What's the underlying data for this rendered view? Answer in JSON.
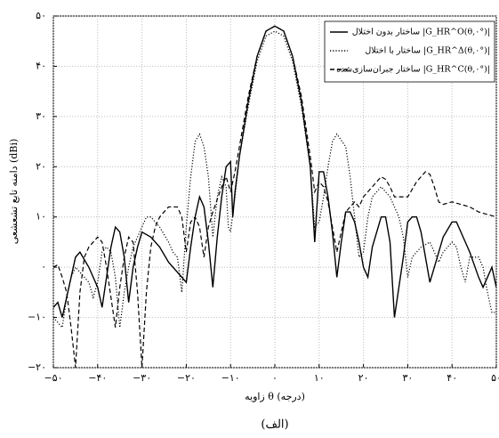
{
  "chart_data": {
    "type": "line",
    "y_label": "دامنه تابع تشعشعی (dBi)",
    "x_label": "زاویه θ (درجه)",
    "caption": "(الف)",
    "xlim": [
      -50,
      50
    ],
    "xticks": [
      {
        "value": -50,
        "label": "−۵۰"
      },
      {
        "value": -40,
        "label": "−۴۰"
      },
      {
        "value": -30,
        "label": "−۳۰"
      },
      {
        "value": -20,
        "label": "−۲۰"
      },
      {
        "value": -10,
        "label": "−۱۰"
      },
      {
        "value": 0,
        "label": "۰"
      },
      {
        "value": 10,
        "label": "۱۰"
      },
      {
        "value": 20,
        "label": "۲۰"
      },
      {
        "value": 30,
        "label": "۳۰"
      },
      {
        "value": 40,
        "label": "۴۰"
      },
      {
        "value": 50,
        "label": "۵۰"
      }
    ],
    "ylim": [
      -20,
      50
    ],
    "yticks": [
      {
        "value": -20,
        "label": "−۲۰"
      },
      {
        "value": -10,
        "label": "−۱۰"
      },
      {
        "value": 0,
        "label": "۰"
      },
      {
        "value": 10,
        "label": "۱۰"
      },
      {
        "value": 20,
        "label": "۲۰"
      },
      {
        "value": 30,
        "label": "۳۰"
      },
      {
        "value": 40,
        "label": "۴۰"
      },
      {
        "value": 50,
        "label": "۵۰"
      }
    ],
    "grid": true,
    "legend": "upper right",
    "series": [
      {
        "name": "ساختار بدون اختلال |G_HR^O(θ,۰°)|",
        "color": "#000000",
        "line_style": "solid",
        "x": [
          -50,
          -49,
          -48,
          -46,
          -45,
          -44,
          -42,
          -40,
          -39,
          -38,
          -37,
          -36,
          -35,
          -34,
          -33,
          -32,
          -31,
          -30,
          -28,
          -26,
          -24,
          -20,
          -19,
          -18,
          -17,
          -16,
          -15,
          -14,
          -13,
          -12,
          -11,
          -10,
          -9.5,
          -9,
          -8,
          -6,
          -4,
          -2,
          0,
          2,
          4,
          6,
          8,
          9,
          9.5,
          10,
          11,
          12,
          13,
          14,
          15,
          16,
          17,
          18,
          19,
          20,
          21,
          22,
          24,
          25,
          26,
          27,
          28,
          29,
          30,
          31,
          32,
          33,
          34,
          35,
          36,
          38,
          40,
          41,
          42,
          44,
          46,
          47,
          48,
          49,
          50
        ],
        "values": [
          -8,
          -7,
          -10,
          -2,
          2,
          3,
          0,
          -4,
          -8,
          -2,
          4,
          8,
          7,
          2,
          -7,
          0,
          4,
          7,
          6,
          4,
          1,
          -3,
          4,
          10,
          14,
          12,
          5,
          -4,
          6,
          14,
          20,
          21,
          10,
          15,
          22,
          33,
          42,
          47,
          48,
          47,
          42,
          33,
          20,
          5,
          12,
          19,
          19,
          14,
          7,
          -2,
          5,
          11,
          11,
          9,
          5,
          0,
          -2,
          4,
          10,
          10,
          5,
          -10,
          -4,
          2,
          9,
          10,
          10,
          7,
          2,
          -3,
          0,
          6,
          9,
          9,
          7,
          3,
          -2,
          -4,
          -2,
          0,
          -4
        ]
      },
      {
        "name": "ساختار با اختلال |G_HR^Δ(θ,۰°)|",
        "color": "#000000",
        "line_style": "dotted",
        "x": [
          -50,
          -49,
          -48,
          -47,
          -46,
          -45,
          -44,
          -42,
          -41,
          -40,
          -39,
          -38,
          -37,
          -36,
          -35,
          -34,
          -33,
          -32,
          -30,
          -29,
          -28,
          -26,
          -24,
          -23,
          -22,
          -21,
          -20,
          -19,
          -18,
          -17,
          -16,
          -15,
          -14,
          -13,
          -12,
          -11,
          -10.5,
          -10,
          -9,
          -8,
          -6,
          -4,
          -2,
          0,
          2,
          4,
          6,
          8,
          9,
          10,
          11,
          12,
          13,
          14,
          16,
          17,
          18,
          19,
          20,
          21,
          22,
          24,
          26,
          28,
          29,
          30,
          31,
          33,
          35,
          36,
          37,
          38,
          40,
          41,
          42,
          43,
          44,
          46,
          47,
          48,
          49,
          50
        ],
        "values": [
          -10,
          -11,
          -12,
          -6,
          -2,
          0,
          -1,
          -3,
          -6,
          -3,
          3,
          4,
          3,
          -2,
          -12,
          -5,
          0,
          4,
          8,
          10,
          10,
          8,
          5,
          3,
          2,
          -5,
          8,
          18,
          25,
          26.5,
          24,
          18,
          6,
          14,
          18,
          16,
          8,
          7,
          14,
          22,
          32,
          41,
          46,
          47,
          46,
          41,
          32,
          20,
          8,
          9,
          14,
          20,
          25,
          26.5,
          24,
          18,
          10,
          2,
          3,
          10,
          14,
          16,
          14,
          10,
          6,
          -2,
          2,
          4,
          5,
          3,
          1,
          3,
          5,
          4,
          0,
          -3,
          2,
          2,
          0,
          -5,
          -9,
          -9
        ]
      },
      {
        "name": "ساختار جبران‌سازی‌شده |G_HR^C(θ,۰°)|",
        "color": "#000000",
        "line_style": "dashed",
        "x": [
          -50,
          -49,
          -48,
          -47,
          -46,
          -45,
          -44,
          -43,
          -42,
          -40,
          -39,
          -38,
          -37,
          -36,
          -35,
          -34,
          -33,
          -32,
          -31,
          -30,
          -29,
          -28,
          -27,
          -26,
          -24,
          -22,
          -21,
          -20,
          -19,
          -18,
          -17,
          -16,
          -15,
          -14,
          -12,
          -11,
          -10,
          -9,
          -8,
          -6,
          -4,
          -2,
          0,
          2,
          4,
          6,
          8,
          9,
          10,
          11,
          12,
          13,
          14,
          15,
          16,
          17,
          18,
          19,
          20,
          22,
          24,
          25,
          26,
          27,
          28,
          30,
          32,
          34,
          35,
          36,
          37,
          38,
          40,
          42,
          44,
          46,
          48,
          50
        ],
        "values": [
          0,
          0.5,
          -2,
          -5,
          -12,
          -20,
          -5,
          2,
          4,
          6,
          5,
          0,
          -6,
          -12,
          -4,
          2,
          6,
          5,
          -5,
          -20,
          -5,
          4,
          8,
          10,
          12,
          12,
          10,
          3,
          9,
          10,
          8,
          2,
          8,
          11,
          16,
          18,
          15,
          19,
          24,
          34,
          42,
          47,
          48,
          47,
          42,
          34,
          22,
          15,
          17,
          16,
          13,
          8,
          3,
          7,
          11,
          12,
          13,
          12,
          14,
          16,
          18,
          17.5,
          16,
          14,
          14,
          14,
          17,
          19,
          18.5,
          16,
          13,
          12.5,
          13,
          12.5,
          12,
          11,
          10.5,
          10
        ]
      }
    ]
  }
}
